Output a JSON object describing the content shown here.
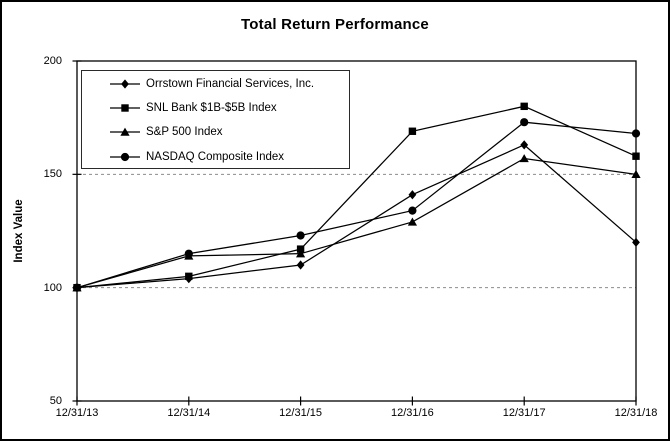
{
  "chart_data": {
    "type": "line",
    "title": "Total Return Performance",
    "ylabel": "Index Value",
    "categories": [
      "12/31/13",
      "12/31/14",
      "12/31/15",
      "12/31/16",
      "12/31/17",
      "12/31/18"
    ],
    "series": [
      {
        "name": "Orrstown Financial Services, Inc.",
        "marker": "diamond",
        "values": [
          100,
          104,
          110,
          141,
          163,
          120
        ]
      },
      {
        "name": "SNL Bank $1B-$5B Index",
        "marker": "square",
        "values": [
          100,
          105,
          117,
          169,
          180,
          158
        ]
      },
      {
        "name": "S&P 500 Index",
        "marker": "triangle",
        "values": [
          100,
          114,
          115,
          129,
          157,
          150
        ]
      },
      {
        "name": "NASDAQ Composite Index",
        "marker": "circle",
        "values": [
          100,
          115,
          123,
          134,
          173,
          168
        ]
      }
    ],
    "ylim": [
      50,
      200
    ],
    "yticks": [
      50,
      100,
      150,
      200
    ],
    "gridlines_y": [
      100,
      150
    ],
    "grid_style": "dashed",
    "legend_position": "top-left",
    "line_color": "#000000",
    "grid_color": "#8c8c8c",
    "background": "#ffffff"
  }
}
